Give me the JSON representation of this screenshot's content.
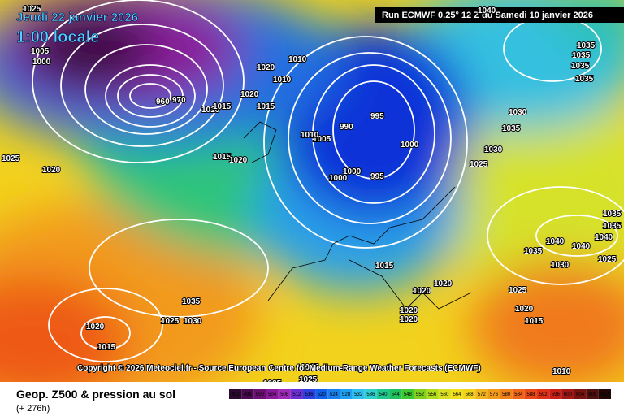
{
  "header": {
    "date": "Jeudi 22 janvier 2026",
    "time": "1:00 locale",
    "run": "Run ECMWF 0.25° 12 Z du Samedi 10 janvier 2026"
  },
  "copyright": "Copyright © 2026 Meteociel.fr - Source European Centre for Medium-Range Weather Forecasts (ECMWF)",
  "footer": {
    "title": "Geop. Z500 & pression au sol",
    "lead": "(+ 276h)"
  },
  "colorbar": {
    "labels": [
      492,
      496,
      500,
      504,
      508,
      512,
      516,
      520,
      524,
      528,
      532,
      536,
      540,
      544,
      548,
      552,
      556,
      560,
      564,
      568,
      572,
      576,
      580,
      584,
      588,
      592,
      596,
      600,
      604,
      608,
      612
    ]
  },
  "isobars": [
    "1025",
    "1005",
    "1000",
    "960",
    "970",
    "1010",
    "1010",
    "1010",
    "1020",
    "1020",
    "1015",
    "1015",
    "995",
    "990",
    "1005",
    "1010",
    "1000",
    "1000",
    "1000",
    "995",
    "1015",
    "1020",
    "1025",
    "1020",
    "1040",
    "1035",
    "1035",
    "1035",
    "1035",
    "1030",
    "1035",
    "1025",
    "1030",
    "1035",
    "1035",
    "1040",
    "1040",
    "1040",
    "1035",
    "1030",
    "1025",
    "1025",
    "1020",
    "1015",
    "1015",
    "1020",
    "1020",
    "1020",
    "1020",
    "1035",
    "1025",
    "1030",
    "1020",
    "1015",
    "1025",
    "1025",
    "1025",
    "1010"
  ]
}
